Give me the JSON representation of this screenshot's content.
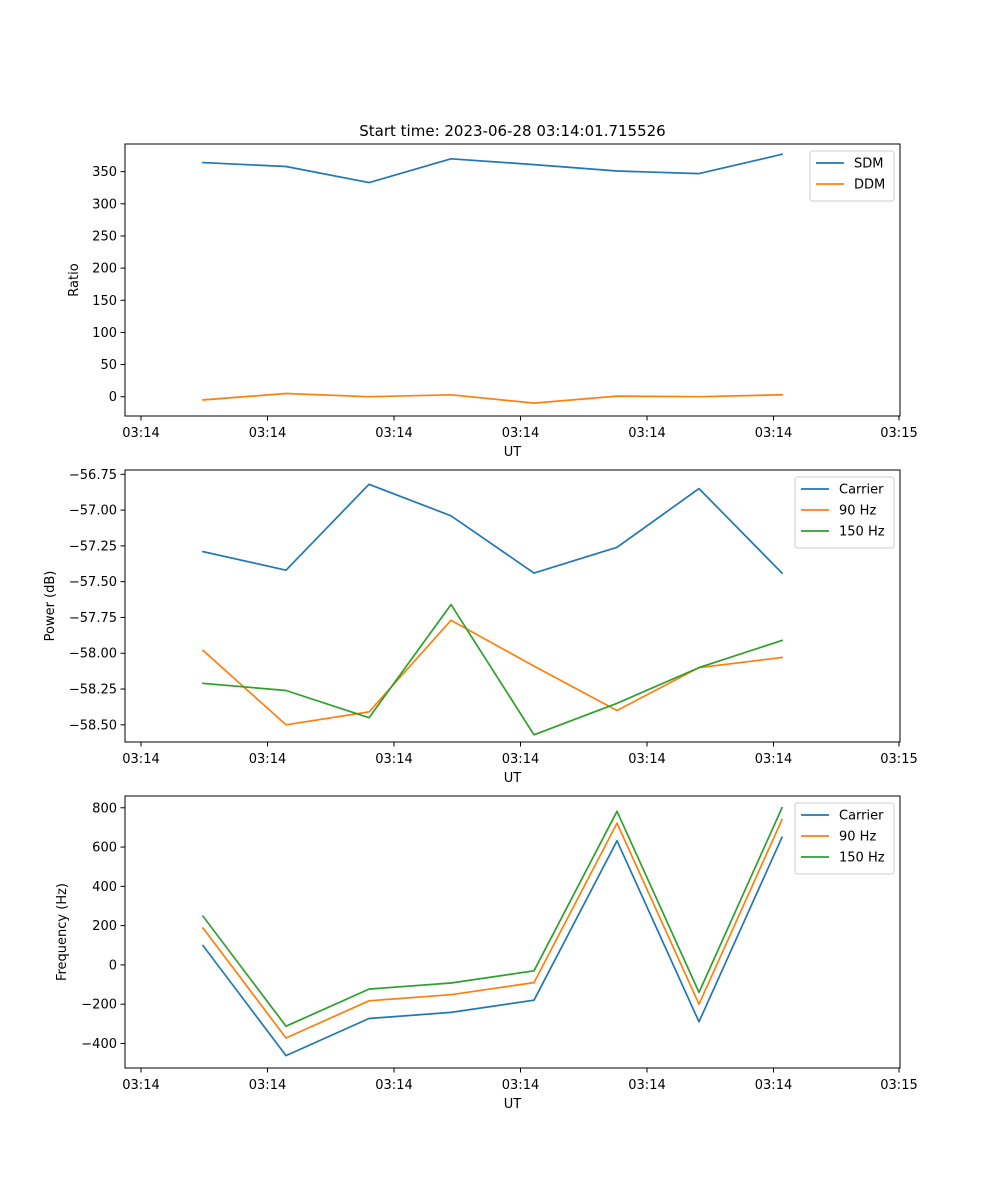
{
  "figure": {
    "title": "Start time: 2023-06-28 03:14:01.715526"
  },
  "chart_data": [
    {
      "type": "line",
      "xlabel": "UT",
      "ylabel": "Ratio",
      "x_ticks": [
        "03:14",
        "03:14",
        "03:14",
        "03:14",
        "03:14",
        "03:14",
        "03:14",
        "03:15"
      ],
      "y_ticks": [
        "0",
        "50",
        "100",
        "150",
        "200",
        "250",
        "300",
        "350"
      ],
      "ylim": [
        -30,
        393
      ],
      "grid": false,
      "legend": "top-right",
      "series": [
        {
          "name": "SDM",
          "color": "#1f77b4",
          "values": [
            364,
            358,
            333,
            370,
            361,
            351,
            347,
            377
          ]
        },
        {
          "name": "DDM",
          "color": "#ff7f0e",
          "values": [
            -5,
            5,
            0,
            3,
            -10,
            1,
            0,
            3
          ]
        }
      ]
    },
    {
      "type": "line",
      "xlabel": "UT",
      "ylabel": "Power (dB)",
      "x_ticks": [
        "03:14",
        "03:14",
        "03:14",
        "03:14",
        "03:14",
        "03:14",
        "03:14",
        "03:15"
      ],
      "y_ticks": [
        "−58.50",
        "−58.25",
        "−58.00",
        "−57.75",
        "−57.50",
        "−57.25",
        "−57.00",
        "−56.75"
      ],
      "ylim": [
        -58.62,
        -56.72
      ],
      "grid": false,
      "legend": "top-right",
      "series": [
        {
          "name": "Carrier",
          "color": "#1f77b4",
          "values": [
            -57.29,
            -57.42,
            -56.82,
            -57.04,
            -57.44,
            -57.26,
            -56.85,
            -57.44
          ]
        },
        {
          "name": "90 Hz",
          "color": "#ff7f0e",
          "values": [
            -57.98,
            -58.5,
            -58.41,
            -57.77,
            -58.09,
            -58.4,
            -58.1,
            -58.03
          ]
        },
        {
          "name": "150 Hz",
          "color": "#2ca02c",
          "values": [
            -58.21,
            -58.26,
            -58.45,
            -57.66,
            -58.57,
            -58.35,
            -58.1,
            -57.91
          ]
        }
      ]
    },
    {
      "type": "line",
      "xlabel": "UT",
      "ylabel": "Frequency (Hz)",
      "x_ticks": [
        "03:14",
        "03:14",
        "03:14",
        "03:14",
        "03:14",
        "03:14",
        "03:14",
        "03:15"
      ],
      "y_ticks": [
        "−400",
        "−200",
        "0",
        "200",
        "400",
        "600",
        "800"
      ],
      "ylim": [
        -525,
        860
      ],
      "grid": false,
      "legend": "top-right",
      "series": [
        {
          "name": "Carrier",
          "color": "#1f77b4",
          "values": [
            98,
            -462,
            -273,
            -242,
            -180,
            632,
            -290,
            650
          ]
        },
        {
          "name": "90 Hz",
          "color": "#ff7f0e",
          "values": [
            188,
            -372,
            -183,
            -152,
            -90,
            722,
            -200,
            740
          ]
        },
        {
          "name": "150 Hz",
          "color": "#2ca02c",
          "values": [
            248,
            -312,
            -123,
            -92,
            -30,
            782,
            -140,
            800
          ]
        }
      ]
    }
  ]
}
